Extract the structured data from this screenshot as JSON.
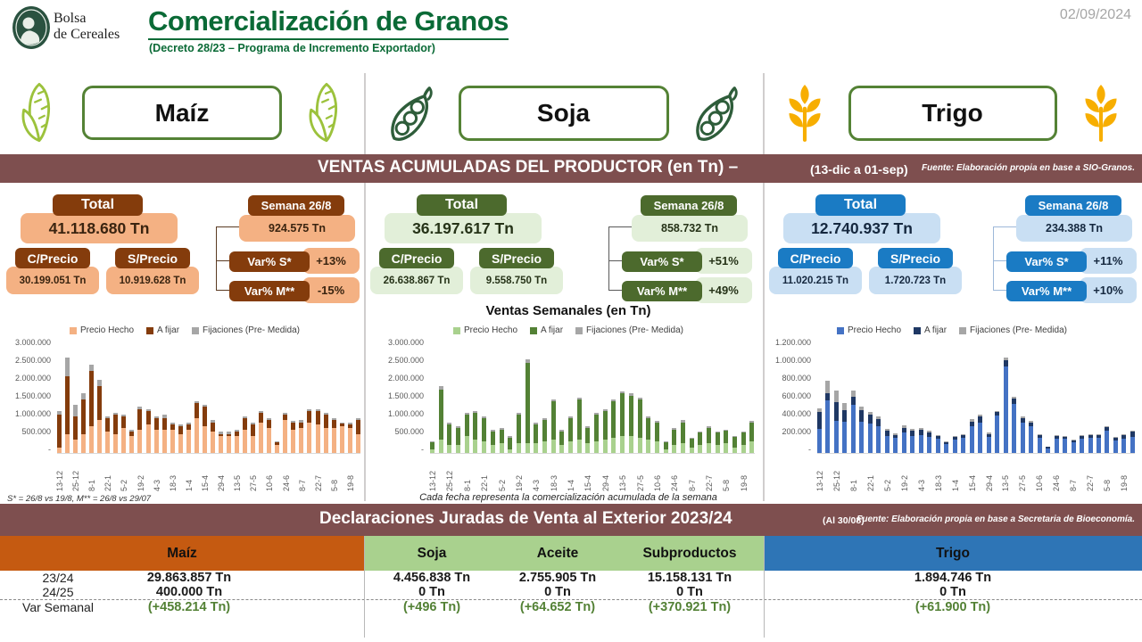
{
  "header": {
    "logo_line1": "Bolsa",
    "logo_line2": "de Cereales",
    "title": "Comercialización de Granos",
    "subtitle": "(Decreto 28/23 – Programa de Incremento Exportador)",
    "date": "02/09/2024"
  },
  "crops": {
    "maiz": "Maíz",
    "soja": "Soja",
    "trigo": "Trigo"
  },
  "banner_ventas": {
    "title": "VENTAS ACUMULADAS DEL PRODUCTOR (en Tn) –",
    "period": "(13-dic a 01-sep)",
    "source": "Fuente: Elaboración propia en base a SIO-Granos."
  },
  "stats": {
    "maiz": {
      "total_label": "Total",
      "total_value": "41.118.680 Tn",
      "cprecio_label": "C/Precio",
      "cprecio_value": "30.199.051 Tn",
      "sprecio_label": "S/Precio",
      "sprecio_value": "10.919.628 Tn",
      "semana_label": "Semana 26/8",
      "semana_value": "924.575 Tn",
      "var_s_label": "Var% S*",
      "var_s_value": "+13%",
      "var_m_label": "Var% M**",
      "var_m_value": "-15%"
    },
    "soja": {
      "total_label": "Total",
      "total_value": "36.197.617 Tn",
      "cprecio_label": "C/Precio",
      "cprecio_value": "26.638.867 Tn",
      "sprecio_label": "S/Precio",
      "sprecio_value": "9.558.750 Tn",
      "semana_label": "Semana 26/8",
      "semana_value": "858.732 Tn",
      "var_s_label": "Var% S*",
      "var_s_value": "+51%",
      "var_m_label": "Var% M**",
      "var_m_value": "+49%"
    },
    "trigo": {
      "total_label": "Total",
      "total_value": "12.740.937 Tn",
      "cprecio_label": "C/Precio",
      "cprecio_value": "11.020.215 Tn",
      "sprecio_label": "S/Precio",
      "sprecio_value": "1.720.723 Tn",
      "semana_label": "Semana 26/8",
      "semana_value": "234.388 Tn",
      "var_s_label": "Var% S*",
      "var_s_value": "+11%",
      "var_m_label": "Var% M**",
      "var_m_value": "+10%"
    }
  },
  "charts_meta": {
    "soja_title": "Ventas Semanales (en Tn)",
    "maiz_footnote": "S* = 26/8 vs 19/8, M** = 26/8 vs 29/07",
    "soja_footnote": "Cada fecha representa la comercialización acumulada de la semana"
  },
  "chart_data": [
    {
      "type": "bar",
      "stacked": true,
      "crop": "Maíz",
      "legend": [
        "Precio Hecho",
        "A fijar",
        "Fijaciones (Pre- Medida)"
      ],
      "legend_position": "top",
      "grid": false,
      "ylim": [
        0,
        3000000
      ],
      "y_ticks": [
        "3.000.000",
        "2.500.000",
        "2.000.000",
        "1.500.000",
        "1.000.000",
        "500.000",
        "-"
      ],
      "x_ticks": [
        "13-12",
        "25-12",
        "8-1",
        "22-1",
        "5-2",
        "19-2",
        "4-3",
        "18-3",
        "1-4",
        "15-4",
        "29-4",
        "13-5",
        "27-5",
        "10-6",
        "24-6",
        "8-7",
        "22-7",
        "5-8",
        "19-8"
      ],
      "x_tick_every": 2,
      "series": [
        {
          "name": "Precio Hecho",
          "color": "#F4B183",
          "values": [
            150000,
            500000,
            350000,
            500000,
            700000,
            850000,
            550000,
            500000,
            650000,
            450000,
            600000,
            750000,
            600000,
            600000,
            600000,
            500000,
            600000,
            900000,
            700000,
            550000,
            450000,
            450000,
            450000,
            600000,
            450000,
            800000,
            650000,
            200000,
            850000,
            600000,
            650000,
            800000,
            750000,
            650000,
            650000,
            700000,
            650000,
            500000
          ]
        },
        {
          "name": "A fijar",
          "color": "#843C0C",
          "values": [
            850000,
            1500000,
            600000,
            900000,
            1450000,
            900000,
            350000,
            500000,
            300000,
            100000,
            550000,
            350000,
            300000,
            300000,
            150000,
            200000,
            150000,
            400000,
            500000,
            250000,
            50000,
            50000,
            100000,
            300000,
            300000,
            250000,
            200000,
            80000,
            150000,
            200000,
            150000,
            300000,
            350000,
            350000,
            200000,
            80000,
            100000,
            350000
          ]
        },
        {
          "name": "Fijaciones (Pre- Medida)",
          "color": "#A6A6A6",
          "values": [
            100000,
            500000,
            300000,
            150000,
            150000,
            150000,
            50000,
            50000,
            50000,
            50000,
            50000,
            50000,
            50000,
            100000,
            50000,
            50000,
            50000,
            50000,
            50000,
            50000,
            50000,
            50000,
            50000,
            50000,
            50000,
            50000,
            50000,
            20000,
            50000,
            50000,
            50000,
            50000,
            50000,
            50000,
            50000,
            20000,
            50000,
            50000
          ]
        }
      ]
    },
    {
      "type": "bar",
      "stacked": true,
      "crop": "Soja",
      "title": "Ventas Semanales (en Tn)",
      "legend": [
        "Precio Hecho",
        "A fijar",
        "Fijaciones (Pre- Medida)"
      ],
      "legend_position": "top",
      "grid": false,
      "ylim": [
        0,
        3000000
      ],
      "y_ticks": [
        "3.000.000",
        "2.500.000",
        "2.000.000",
        "1.500.000",
        "1.000.000",
        "500.000",
        "-"
      ],
      "x_ticks": [
        "13-12",
        "25-12",
        "8-1",
        "22-1",
        "5-2",
        "19-2",
        "4-3",
        "18-3",
        "1-4",
        "15-4",
        "29-4",
        "13-5",
        "27-5",
        "10-6",
        "24-6",
        "8-7",
        "22-7",
        "5-8",
        "19-8"
      ],
      "x_tick_every": 2,
      "series": [
        {
          "name": "Precio Hecho",
          "color": "#A9D18E",
          "values": [
            100000,
            350000,
            200000,
            200000,
            450000,
            350000,
            300000,
            200000,
            250000,
            100000,
            250000,
            250000,
            250000,
            300000,
            350000,
            200000,
            300000,
            350000,
            250000,
            300000,
            350000,
            400000,
            450000,
            450000,
            400000,
            350000,
            300000,
            100000,
            200000,
            250000,
            150000,
            200000,
            250000,
            200000,
            250000,
            150000,
            200000,
            300000
          ]
        },
        {
          "name": "A fijar",
          "color": "#538135",
          "values": [
            180000,
            1300000,
            550000,
            450000,
            550000,
            700000,
            600000,
            350000,
            350000,
            300000,
            750000,
            2100000,
            500000,
            550000,
            1000000,
            350000,
            600000,
            1050000,
            400000,
            700000,
            750000,
            950000,
            1100000,
            1050000,
            1000000,
            550000,
            500000,
            180000,
            400000,
            550000,
            230000,
            330000,
            400000,
            330000,
            330000,
            280000,
            330000,
            500000
          ]
        },
        {
          "name": "Fijaciones (Pre- Medida)",
          "color": "#A6A6A6",
          "values": [
            20000,
            100000,
            50000,
            50000,
            50000,
            50000,
            50000,
            50000,
            50000,
            50000,
            50000,
            100000,
            50000,
            50000,
            50000,
            50000,
            50000,
            50000,
            50000,
            50000,
            50000,
            50000,
            50000,
            50000,
            50000,
            50000,
            50000,
            20000,
            50000,
            50000,
            20000,
            20000,
            50000,
            20000,
            20000,
            20000,
            20000,
            50000
          ]
        }
      ]
    },
    {
      "type": "bar",
      "stacked": true,
      "crop": "Trigo",
      "legend": [
        "Precio Hecho",
        "A fijar",
        "Fijaciones (Pre- Medida)"
      ],
      "legend_position": "top",
      "grid": false,
      "ylim": [
        0,
        1200000
      ],
      "y_ticks": [
        "1.200.000",
        "1.000.000",
        "800.000",
        "600.000",
        "400.000",
        "200.000",
        "-"
      ],
      "x_ticks": [
        "13-12",
        "25-12",
        "8-1",
        "22-1",
        "5-2",
        "19-2",
        "4-3",
        "18-3",
        "1-4",
        "15-4",
        "29-4",
        "13-5",
        "27-5",
        "10-6",
        "24-6",
        "8-7",
        "22-7",
        "5-8",
        "19-8"
      ],
      "x_tick_every": 2,
      "series": [
        {
          "name": "Precio Hecho",
          "color": "#4472C4",
          "values": [
            250000,
            550000,
            340000,
            330000,
            500000,
            330000,
            310000,
            280000,
            180000,
            160000,
            210000,
            180000,
            190000,
            170000,
            150000,
            90000,
            140000,
            160000,
            280000,
            320000,
            170000,
            390000,
            900000,
            510000,
            320000,
            280000,
            160000,
            50000,
            150000,
            150000,
            110000,
            150000,
            160000,
            160000,
            230000,
            130000,
            150000,
            170000
          ]
        },
        {
          "name": "A fijar",
          "color": "#1F3864",
          "values": [
            180000,
            70000,
            190000,
            120000,
            90000,
            120000,
            90000,
            70000,
            50000,
            30000,
            50000,
            50000,
            50000,
            40000,
            30000,
            20000,
            30000,
            30000,
            50000,
            60000,
            30000,
            40000,
            70000,
            60000,
            40000,
            40000,
            30000,
            15000,
            30000,
            20000,
            20000,
            30000,
            30000,
            30000,
            40000,
            30000,
            40000,
            50000
          ]
        },
        {
          "name": "Fijaciones (Pre- Medida)",
          "color": "#A6A6A6",
          "values": [
            40000,
            130000,
            120000,
            70000,
            60000,
            30000,
            30000,
            30000,
            20000,
            20000,
            30000,
            20000,
            20000,
            20000,
            10000,
            10000,
            10000,
            10000,
            20000,
            20000,
            10000,
            10000,
            30000,
            20000,
            20000,
            20000,
            10000,
            5000,
            10000,
            10000,
            10000,
            10000,
            10000,
            10000,
            10000,
            10000,
            10000,
            10000
          ]
        }
      ]
    }
  ],
  "banner_ddjj": {
    "title": "Declaraciones Juradas de Venta al Exterior 2023/24",
    "asof": "(Al 30/08)",
    "source": "Fuente: Elaboración propia en base a Secretaria de Bioeconomía."
  },
  "export_table": {
    "row_labels": [
      "23/24",
      "24/25",
      "Var Semanal"
    ],
    "columns": [
      {
        "name": "Maíz",
        "color": "#C55A11",
        "values": [
          "29.863.857 Tn",
          "400.000 Tn",
          "(+458.214 Tn)"
        ]
      },
      {
        "name": "Soja",
        "color": "#A9D18E",
        "values": [
          "4.456.838 Tn",
          "0 Tn",
          "(+496 Tn)"
        ]
      },
      {
        "name": "Aceite",
        "color": "#A9D18E",
        "values": [
          "2.755.905 Tn",
          "0 Tn",
          "(+64.652 Tn)"
        ]
      },
      {
        "name": "Subproductos",
        "color": "#A9D18E",
        "values": [
          "15.158.131 Tn",
          "0 Tn",
          "(+370.921 Tn)"
        ]
      },
      {
        "name": "Trigo",
        "color": "#2E75B6",
        "values": [
          "1.894.746 Tn",
          "0 Tn",
          "(+61.900 Tn)"
        ]
      }
    ],
    "var_color": "#538135"
  }
}
